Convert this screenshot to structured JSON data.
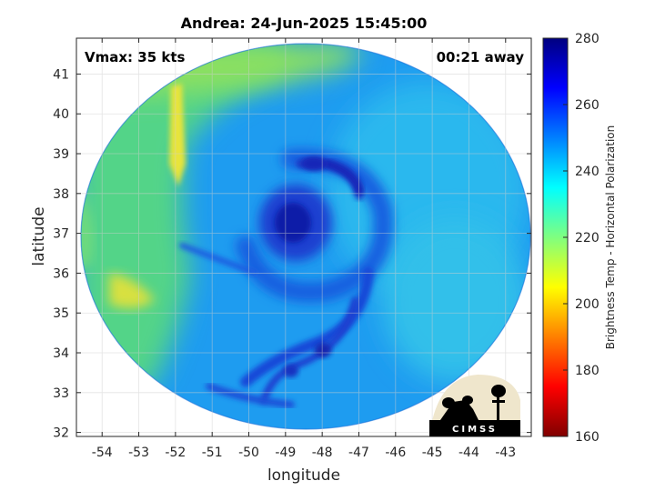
{
  "chart_data": {
    "type": "heatmap",
    "title": "Andrea: 24-Jun-2025 15:45:00",
    "xlabel": "longitude",
    "ylabel": "latitude",
    "xlim": [
      -54.7,
      -42.3
    ],
    "ylim": [
      31.9,
      41.9
    ],
    "x_ticks": [
      "-54",
      "-53",
      "-52",
      "-51",
      "-50",
      "-49",
      "-48",
      "-47",
      "-46",
      "-45",
      "-44",
      "-43"
    ],
    "y_ticks": [
      "32",
      "33",
      "34",
      "35",
      "36",
      "37",
      "38",
      "39",
      "40",
      "41"
    ],
    "grid": true,
    "storm_center": {
      "lon": -48.8,
      "lat": 37.1
    },
    "annotations": {
      "vmax": "Vmax: 35 kts",
      "time_offset": "00:21 away"
    },
    "colorbar": {
      "label": "Brightness Temp - Horizontal Polarization",
      "range": [
        160,
        280
      ],
      "ticks": [
        "160",
        "180",
        "200",
        "220",
        "240",
        "260",
        "280"
      ],
      "colormap": "jet"
    },
    "logo_text": "CIMSS"
  }
}
